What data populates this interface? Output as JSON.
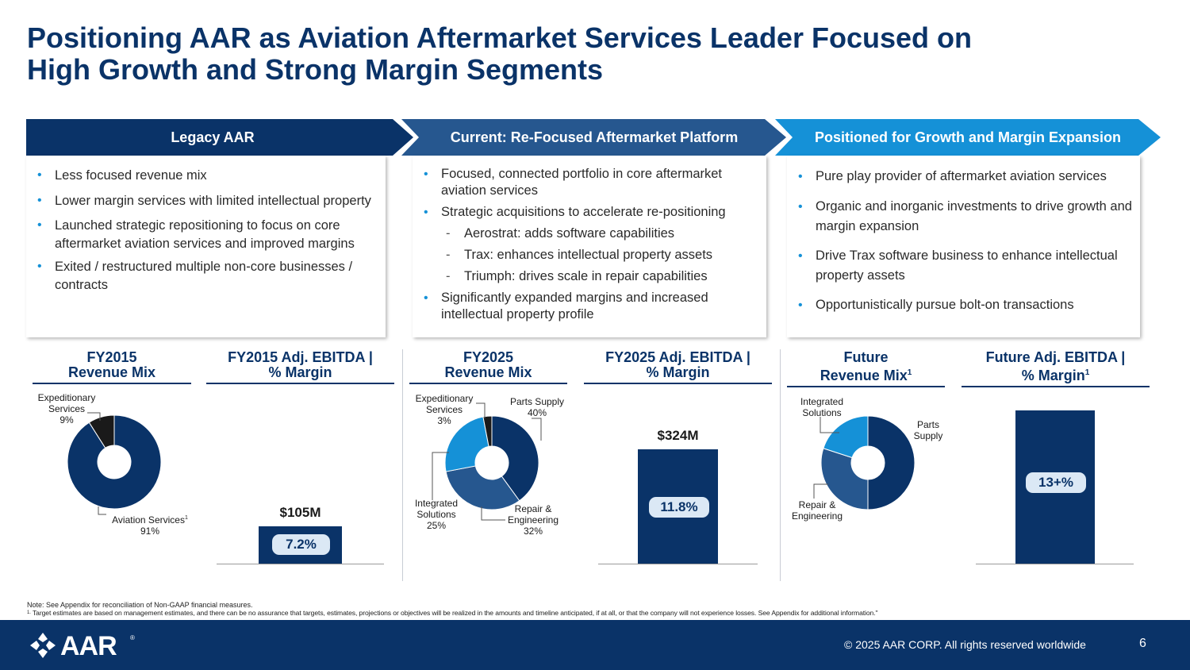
{
  "title": {
    "line1": "Positioning AAR as Aviation Aftermarket Services Leader Focused on",
    "line2": "High Growth and Strong Margin Segments"
  },
  "colors": {
    "navy": "#0a3368",
    "mid_blue": "#26578f",
    "bright_blue": "#1591d7",
    "black": "#1a1a1a",
    "pill_bg": "#dbe8f5"
  },
  "columns": [
    {
      "banner": "Legacy AAR",
      "bullets": [
        "Less focused revenue mix",
        "Lower margin services with limited intellectual property",
        "Launched strategic repositioning to focus on core aftermarket aviation services and improved margins",
        "Exited / restructured multiple non-core businesses / contracts"
      ]
    },
    {
      "banner": "Current: Re-Focused Aftermarket Platform",
      "bullets": [
        "Focused, connected portfolio in core aftermarket aviation services",
        "Strategic acquisitions to accelerate re-positioning",
        "Aerostrat: adds software capabilities",
        "Trax: enhances intellectual property assets",
        "Triumph: drives scale in repair capabilities",
        "Significantly expanded margins and increased intellectual property profile"
      ]
    },
    {
      "banner": "Positioned for Growth and Margin Expansion",
      "bullets": [
        "Pure play provider of aftermarket aviation services",
        "Organic and inorganic investments to drive growth and margin expansion",
        "Drive Trax software business to enhance intellectual property assets",
        "Opportunistically pursue bolt-on transactions"
      ]
    }
  ],
  "headers": {
    "fy2015_mix": [
      "FY2015",
      "Revenue Mix"
    ],
    "fy2015_ebitda": [
      "FY2015 Adj. EBITDA |",
      "% Margin"
    ],
    "fy2025_mix": [
      "FY2025",
      "Revenue Mix"
    ],
    "fy2025_ebitda": [
      "FY2025 Adj. EBITDA |",
      "% Margin"
    ],
    "future_mix": [
      "Future",
      "Revenue Mix",
      "1"
    ],
    "future_ebitda": [
      "Future Adj. EBITDA |",
      "% Margin",
      "1"
    ]
  },
  "chart_data": [
    {
      "type": "pie",
      "title": "FY2015 Revenue Mix",
      "slices": [
        {
          "label": "Aviation Services",
          "value": 91,
          "display": "91%",
          "color": "#0a3368"
        },
        {
          "label": "Expeditionary Services",
          "value": 9,
          "display": "9%",
          "color": "#1a1a1a"
        }
      ]
    },
    {
      "type": "bar",
      "title": "FY2015 Adj. EBITDA | % Margin",
      "categories": [
        "FY2015"
      ],
      "values": [
        105
      ],
      "value_label": "$105M",
      "margin_label": "7.2%",
      "ylim": [
        0,
        400
      ]
    },
    {
      "type": "pie",
      "title": "FY2025 Revenue Mix",
      "slices": [
        {
          "label": "Parts Supply",
          "value": 40,
          "display": "40%",
          "color": "#0a3368"
        },
        {
          "label": "Repair & Engineering",
          "value": 32,
          "display": "32%",
          "color": "#26578f"
        },
        {
          "label": "Integrated Solutions",
          "value": 25,
          "display": "25%",
          "color": "#1591d7"
        },
        {
          "label": "Expeditionary Services",
          "value": 3,
          "display": "3%",
          "color": "#1a1a1a"
        }
      ]
    },
    {
      "type": "bar",
      "title": "FY2025 Adj. EBITDA | % Margin",
      "categories": [
        "FY2025"
      ],
      "values": [
        324
      ],
      "value_label": "$324M",
      "margin_label": "11.8%",
      "ylim": [
        0,
        400
      ]
    },
    {
      "type": "pie",
      "title": "Future Revenue Mix",
      "slices": [
        {
          "label": "Parts Supply",
          "value": 50,
          "color": "#0a3368"
        },
        {
          "label": "Repair & Engineering",
          "value": 30,
          "color": "#26578f"
        },
        {
          "label": "Integrated Solutions",
          "value": 20,
          "color": "#1591d7"
        }
      ]
    },
    {
      "type": "bar",
      "title": "Future Adj. EBITDA | % Margin",
      "categories": [
        "Future"
      ],
      "margin_label": "13+%"
    }
  ],
  "labels": {
    "fy15_exp": [
      "Expeditionary",
      "Services",
      "9%"
    ],
    "fy15_avi": [
      "Aviation Services",
      "1",
      "91%"
    ],
    "fy25_exp": [
      "Expeditionary",
      "Services",
      "3%"
    ],
    "fy25_parts": [
      "Parts Supply",
      "40%"
    ],
    "fy25_int": [
      "Integrated",
      "Solutions",
      "25%"
    ],
    "fy25_rep": [
      "Repair &",
      "Engineering",
      "32%"
    ],
    "fut_int": [
      "Integrated",
      "Solutions"
    ],
    "fut_parts": [
      "Parts",
      "Supply"
    ],
    "fut_rep": [
      "Repair &",
      "Engineering"
    ]
  },
  "notes": {
    "note1": "Note: See Appendix for reconciliation of Non-GAAP financial measures.",
    "note2_mark": "1.",
    "note2": "Target estimates are based on management estimates, and there can be no assurance that targets, estimates, projections or objectives will be realized in the amounts and timeline anticipated, if at all, or that the company will not experience losses. See Appendix for additional information.\""
  },
  "footer": {
    "logo": "AAR",
    "logo_mark": "®",
    "copyright": "© 2025 AAR CORP. All rights reserved worldwide",
    "page": "6"
  }
}
